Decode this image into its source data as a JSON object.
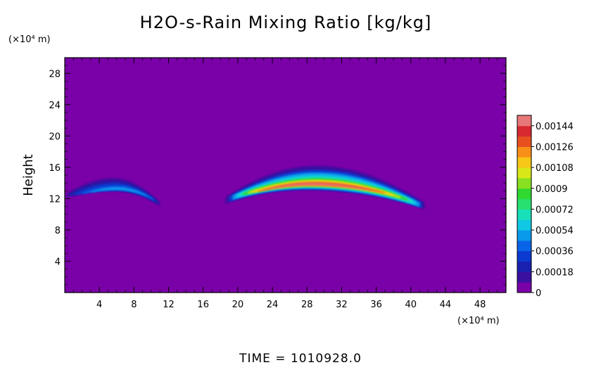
{
  "chart_data": {
    "type": "heatmap",
    "title": "H2O-s-Rain Mixing Ratio [kg/kg]",
    "ylabel": "Height",
    "xlabel": "",
    "y_unit": "(×10⁴ m)",
    "x_unit": "(×10⁴ m)",
    "xlim": [
      0,
      51
    ],
    "ylim": [
      0,
      30
    ],
    "x_ticks": [
      "4",
      "8",
      "12",
      "16",
      "20",
      "24",
      "28",
      "32",
      "36",
      "40",
      "44",
      "48"
    ],
    "y_ticks": [
      "4",
      "8",
      "12",
      "16",
      "20",
      "24",
      "28"
    ],
    "colorbar": {
      "labels": [
        "0",
        "0.00018",
        "0.00036",
        "0.00054",
        "0.00072",
        "0.0009",
        "0.00108",
        "0.00126",
        "0.00144"
      ],
      "min": 0,
      "max": 0.00153,
      "levels": 17,
      "colors": [
        "#7a00a8",
        "#3a10a0",
        "#1a20b0",
        "#0a3ad0",
        "#0a64e8",
        "#0a9aec",
        "#10c8e4",
        "#18e0b8",
        "#28e070",
        "#30d830",
        "#88e020",
        "#d8e818",
        "#f8c818",
        "#f89018",
        "#e85020",
        "#d82830",
        "#e87878"
      ]
    },
    "background_color": "#7a00a8",
    "features": [
      {
        "name": "left rain band",
        "x_range": [
          0.5,
          11
        ],
        "crest_height": 13.3,
        "max_value": 0.00036
      },
      {
        "name": "right rain band",
        "x_range": [
          18.5,
          41.5
        ],
        "crest_height": 13.7,
        "max_value": 0.00144
      }
    ]
  },
  "footer": {
    "time_label": "TIME = 1010928.0"
  }
}
